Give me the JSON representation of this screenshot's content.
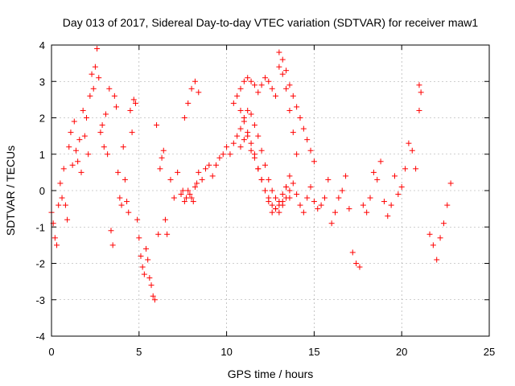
{
  "chart_data": {
    "type": "scatter",
    "title": "Day 013 of 2017, Sidereal Day-to-day VTEC variation (SDTVAR) for receiver maw1",
    "xlabel": "GPS time / hours",
    "ylabel": "SDTVAR / TECUs",
    "xlim": [
      0,
      25
    ],
    "ylim": [
      -4,
      4
    ],
    "xticks": [
      0,
      5,
      10,
      15,
      20,
      25
    ],
    "yticks": [
      -4,
      -3,
      -2,
      -1,
      0,
      1,
      2,
      3,
      4
    ],
    "grid": true,
    "marker": "+",
    "color": "#ff0000",
    "series": [
      {
        "name": "SDTVAR",
        "x": [
          0.0,
          0.1,
          0.2,
          0.3,
          0.4,
          0.5,
          0.6,
          0.7,
          0.8,
          0.9,
          1.0,
          1.1,
          1.2,
          1.3,
          1.4,
          1.5,
          1.6,
          1.7,
          1.8,
          1.9,
          2.0,
          2.1,
          2.2,
          2.3,
          2.4,
          2.5,
          2.6,
          2.7,
          2.8,
          2.9,
          3.0,
          3.1,
          3.2,
          3.3,
          3.4,
          3.5,
          3.6,
          3.7,
          3.8,
          3.9,
          4.0,
          4.1,
          4.2,
          4.3,
          4.4,
          4.5,
          4.6,
          4.7,
          4.8,
          4.9,
          5.0,
          5.1,
          5.2,
          5.3,
          5.4,
          5.5,
          5.6,
          5.7,
          5.8,
          5.9,
          6.0,
          6.1,
          6.2,
          6.3,
          6.4,
          6.5,
          6.6,
          6.8,
          7.0,
          7.2,
          7.4,
          7.5,
          7.6,
          7.7,
          7.8,
          7.9,
          8.0,
          8.1,
          8.2,
          8.3,
          8.4,
          8.6,
          8.8,
          9.0,
          9.2,
          9.4,
          9.6,
          9.8,
          10.0,
          10.2,
          10.4,
          10.6,
          10.8,
          11.0,
          11.2,
          11.4,
          11.6,
          11.8,
          12.0,
          12.2,
          12.4,
          12.6,
          12.8,
          13.0,
          13.2,
          13.4,
          13.6,
          13.8,
          14.0,
          14.2,
          14.4,
          14.6,
          14.8,
          15.0,
          15.2,
          15.4,
          15.6,
          15.8,
          16.0,
          16.2,
          16.4,
          16.6,
          16.8,
          17.0,
          17.2,
          17.4,
          17.6,
          17.8,
          18.0,
          18.2,
          18.4,
          18.6,
          18.8,
          19.0,
          19.2,
          19.4,
          19.6,
          19.8,
          20.0,
          20.2,
          20.4,
          20.6,
          20.8,
          21.0,
          21.6,
          21.8,
          22.0,
          22.2,
          22.4,
          22.6,
          22.8,
          10.4,
          10.6,
          10.8,
          11.0,
          11.2,
          11.4,
          11.6,
          11.8,
          12.0,
          12.2,
          12.4,
          12.6,
          12.8,
          13.0,
          13.2,
          13.4,
          13.6,
          13.8,
          14.0,
          14.2,
          14.4,
          14.6,
          14.8,
          15.0,
          10.8,
          11.0,
          11.2,
          11.4,
          11.6,
          11.8,
          12.0,
          12.2,
          12.4,
          12.6,
          12.8,
          13.0,
          13.2,
          13.4,
          13.6,
          10.8,
          11.0,
          11.2,
          11.4,
          11.6,
          11.8,
          12.0,
          12.2,
          12.4,
          12.6,
          12.8,
          13.0,
          13.2,
          13.4,
          13.6,
          7.6,
          7.8,
          8.0,
          8.2,
          8.4,
          13.0,
          13.2,
          13.4,
          13.6,
          13.8,
          14.0,
          21.0,
          21.1
        ],
        "y": [
          -0.6,
          -0.9,
          -1.3,
          -1.5,
          -0.4,
          0.2,
          -0.2,
          0.6,
          -0.4,
          -0.8,
          1.2,
          1.6,
          0.7,
          1.9,
          1.1,
          0.8,
          1.4,
          0.5,
          2.2,
          1.5,
          2.0,
          1.0,
          2.6,
          3.2,
          2.8,
          3.4,
          3.9,
          3.1,
          1.6,
          1.8,
          1.2,
          2.1,
          1.0,
          2.8,
          -1.1,
          -1.5,
          2.6,
          2.3,
          0.5,
          -0.2,
          -0.4,
          1.2,
          0.3,
          -0.3,
          -0.6,
          2.2,
          1.6,
          2.5,
          2.4,
          -0.8,
          -1.3,
          -1.8,
          -2.1,
          -2.3,
          -1.6,
          -1.9,
          -2.4,
          -2.6,
          -2.9,
          -3.0,
          1.8,
          -1.2,
          0.6,
          0.9,
          1.1,
          -0.8,
          -1.2,
          0.3,
          -0.2,
          0.5,
          -0.1,
          0.0,
          -0.3,
          -0.2,
          0.0,
          -0.1,
          -0.2,
          -0.3,
          0.1,
          0.2,
          0.5,
          0.3,
          0.6,
          0.7,
          0.4,
          0.7,
          0.9,
          1.0,
          1.2,
          1.0,
          1.3,
          1.5,
          2.2,
          1.9,
          1.6,
          1.1,
          0.9,
          0.6,
          0.3,
          0.0,
          -0.3,
          -0.6,
          -0.5,
          -0.3,
          -0.1,
          0.1,
          0.4,
          0.2,
          -0.1,
          -0.4,
          -0.6,
          -0.2,
          0.1,
          -0.3,
          -0.5,
          -0.4,
          -0.2,
          0.3,
          -0.9,
          -0.6,
          -0.2,
          0.0,
          0.4,
          -0.5,
          -1.7,
          -2.0,
          -2.1,
          -0.4,
          -0.6,
          -0.2,
          0.5,
          0.3,
          0.8,
          -0.3,
          -0.7,
          -0.4,
          0.4,
          -0.1,
          0.1,
          0.6,
          1.3,
          1.1,
          0.6,
          2.9,
          -1.2,
          -1.5,
          -1.9,
          -1.3,
          -0.9,
          -0.4,
          0.2,
          2.4,
          2.6,
          2.8,
          3.0,
          3.1,
          3.0,
          2.9,
          2.7,
          2.9,
          3.1,
          3.0,
          2.8,
          2.6,
          3.8,
          3.6,
          3.3,
          2.9,
          2.6,
          2.3,
          2.0,
          1.7,
          1.4,
          1.1,
          0.8,
          1.7,
          2.0,
          2.2,
          2.1,
          1.8,
          1.5,
          1.1,
          0.7,
          0.3,
          0.0,
          -0.2,
          -0.4,
          -0.3,
          0.1,
          -0.2,
          1.2,
          1.4,
          1.5,
          1.3,
          1.0,
          0.6,
          0.3,
          0.0,
          -0.2,
          -0.4,
          -0.5,
          -0.6,
          -0.4,
          -0.2,
          0.0,
          2.0,
          2.4,
          2.8,
          3.0,
          2.7,
          3.4,
          3.2,
          2.8,
          2.2,
          1.6,
          1.0,
          2.2,
          2.7
        ]
      }
    ]
  }
}
